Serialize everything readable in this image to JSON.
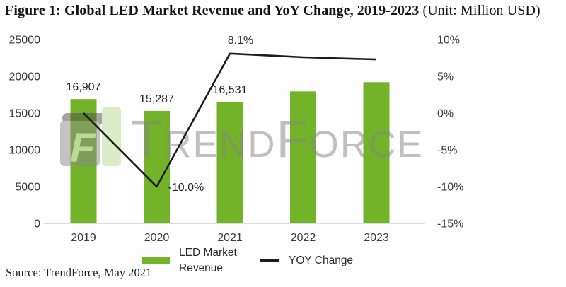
{
  "title": {
    "main": "Figure 1: Global LED Market Revenue and YoY Change, 2019-2023",
    "unit": " (Unit: Million USD)"
  },
  "watermark": {
    "text": "TrendForce",
    "logo_glyph": "F"
  },
  "legend": [
    {
      "label": "LED Market Revenue",
      "swatch": "green-bar"
    },
    {
      "label": "YOY Change",
      "swatch": "black-line"
    }
  ],
  "source": "Source: TrendForce, May 2021",
  "colors": {
    "bar": "#72b32a",
    "line": "#1c1c1c",
    "axis_text": "#3a3a3a",
    "watermark_text": "#848484",
    "baseline": "#c8c8c8"
  },
  "chart_data": {
    "type": "bar+line combo (bar = revenue on left axis, line = YoY % on right axis)",
    "categories": [
      "2019",
      "2020",
      "2021",
      "2022",
      "2023"
    ],
    "series": [
      {
        "name": "LED Market Revenue",
        "type": "bar",
        "axis": "left",
        "values": [
          16907,
          15287,
          16531,
          17950,
          19200
        ],
        "value_labels": [
          "16,907",
          "15,287",
          "16,531",
          "",
          ""
        ]
      },
      {
        "name": "YOY Change",
        "type": "line",
        "axis": "right",
        "values": [
          0.0,
          -10.0,
          8.1,
          7.6,
          7.3
        ],
        "value_labels": [
          "",
          "-10.0%",
          "8.1%",
          "",
          ""
        ]
      }
    ],
    "left_axis": {
      "range": [
        0,
        25000
      ],
      "ticks": [
        {
          "v": 0,
          "label": "0"
        },
        {
          "v": 5000,
          "label": "5000"
        },
        {
          "v": 10000,
          "label": "10000"
        },
        {
          "v": 15000,
          "label": "15000"
        },
        {
          "v": 20000,
          "label": "20000"
        },
        {
          "v": 25000,
          "label": "25000"
        }
      ]
    },
    "right_axis": {
      "range": [
        -15,
        10
      ],
      "ticks": [
        {
          "v": 10,
          "label": "10%"
        },
        {
          "v": 5,
          "label": "5%"
        },
        {
          "v": 0,
          "label": "0%"
        },
        {
          "v": -5,
          "label": "-5%"
        },
        {
          "v": -10,
          "label": "-10%"
        },
        {
          "v": -15,
          "label": "-15%"
        }
      ]
    },
    "grid": "none (light gray baseline only)",
    "legend_position": "bottom-center"
  }
}
